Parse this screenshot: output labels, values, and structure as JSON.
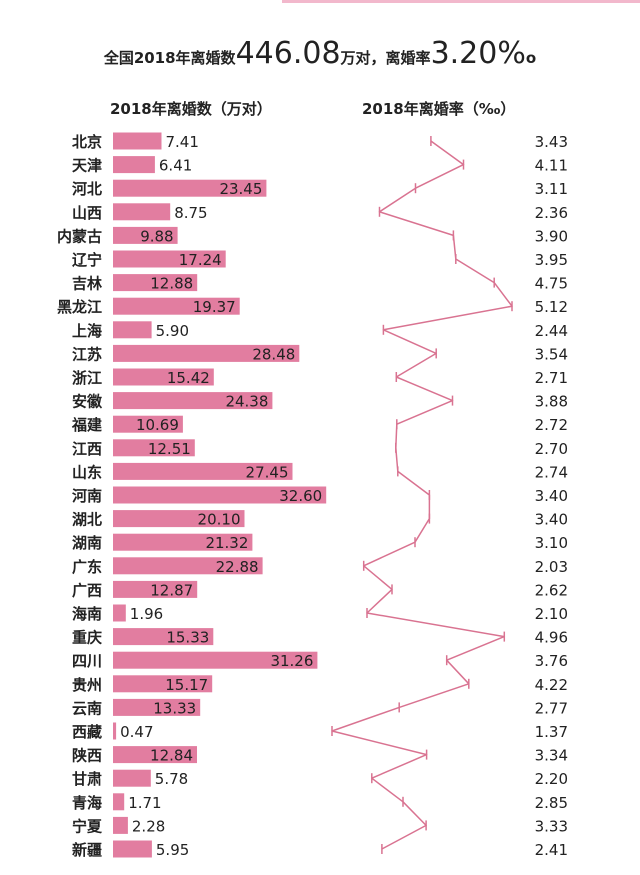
{
  "headline": {
    "prefix": "全国2018年离婚数",
    "total": "446.08",
    "mid": "万对，离婚率",
    "rate": "3.20%",
    "suffix": "o"
  },
  "colors": {
    "bar": "#e27da0",
    "line": "#d97391",
    "text": "#222222",
    "topline": "#f2b8cc"
  },
  "chart_data": [
    {
      "type": "bar",
      "title": "2018年离婚数（万对）",
      "orientation": "horizontal",
      "categories": [
        "北京",
        "天津",
        "河北",
        "山西",
        "内蒙古",
        "辽宁",
        "吉林",
        "黑龙江",
        "上海",
        "江苏",
        "浙江",
        "安徽",
        "福建",
        "江西",
        "山东",
        "河南",
        "湖北",
        "湖南",
        "广东",
        "广西",
        "海南",
        "重庆",
        "四川",
        "贵州",
        "云南",
        "西藏",
        "陕西",
        "甘肃",
        "青海",
        "宁夏",
        "新疆"
      ],
      "values": [
        7.41,
        6.41,
        23.45,
        8.75,
        9.88,
        17.24,
        12.88,
        19.37,
        5.9,
        28.48,
        15.42,
        24.38,
        10.69,
        12.51,
        27.45,
        32.6,
        20.1,
        21.32,
        22.88,
        12.87,
        1.96,
        15.33,
        31.26,
        15.17,
        13.33,
        0.47,
        12.84,
        5.78,
        1.71,
        2.28,
        5.95
      ],
      "value_labels": [
        "7.41",
        "6.41",
        "23.45",
        "8.75",
        "9.88",
        "17.24",
        "12.88",
        "19.37",
        "5.90",
        "28.48",
        "15.42",
        "24.38",
        "10.69",
        "12.51",
        "27.45",
        "32.60",
        "20.10",
        "21.32",
        "22.88",
        "12.87",
        "1.96",
        "15.33",
        "31.26",
        "15.17",
        "13.33",
        "0.47",
        "12.84",
        "5.78",
        "1.71",
        "2.28",
        "5.95"
      ]
    },
    {
      "type": "line",
      "title": "2018年离婚率（‰）",
      "orientation": "vertical",
      "categories": [
        "北京",
        "天津",
        "河北",
        "山西",
        "内蒙古",
        "辽宁",
        "吉林",
        "黑龙江",
        "上海",
        "江苏",
        "浙江",
        "安徽",
        "福建",
        "江西",
        "山东",
        "河南",
        "湖北",
        "湖南",
        "广东",
        "广西",
        "海南",
        "重庆",
        "四川",
        "贵州",
        "云南",
        "西藏",
        "陕西",
        "甘肃",
        "青海",
        "宁夏",
        "新疆"
      ],
      "values": [
        3.43,
        4.11,
        3.11,
        2.36,
        3.9,
        3.95,
        4.75,
        5.12,
        2.44,
        3.54,
        2.71,
        3.88,
        2.72,
        2.7,
        2.74,
        3.4,
        3.4,
        3.1,
        2.03,
        2.62,
        2.1,
        4.96,
        3.76,
        4.22,
        2.77,
        1.37,
        3.34,
        2.2,
        2.85,
        3.33,
        2.41
      ],
      "value_labels": [
        "3.43",
        "4.11",
        "3.11",
        "2.36",
        "3.90",
        "3.95",
        "4.75",
        "5.12",
        "2.44",
        "3.54",
        "2.71",
        "3.88",
        "2.72",
        "2.70",
        "2.74",
        "3.40",
        "3.40",
        "3.10",
        "2.03",
        "2.62",
        "2.10",
        "4.96",
        "3.76",
        "4.22",
        "2.77",
        "1.37",
        "3.34",
        "2.20",
        "2.85",
        "3.33",
        "2.41"
      ]
    }
  ]
}
